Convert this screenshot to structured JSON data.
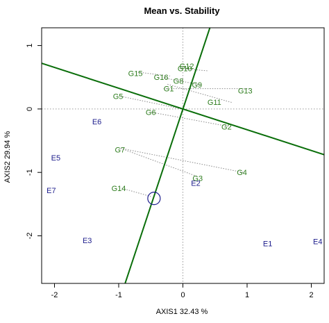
{
  "chart_data": {
    "type": "scatter",
    "title": "Mean vs. Stability",
    "xlabel": "AXIS1 32.43 %",
    "ylabel": "AXIS2 29.94 %",
    "xlim": [
      -2.2,
      2.2
    ],
    "ylim": [
      -2.75,
      1.28
    ],
    "xticks": [
      -2,
      -1,
      0,
      1,
      2
    ],
    "yticks": [
      -2,
      -1,
      0,
      1
    ],
    "grid": false,
    "genotype_color": "#2e7d1e",
    "environment_color": "#1c1c8c",
    "line_color": "#0a6e0a",
    "projection_color": "#888888",
    "reference_color": "#999999",
    "circle_color": "#1c1c8c",
    "genotypes": [
      {
        "label": "G1",
        "x": -0.22,
        "y": 0.32
      },
      {
        "label": "G2",
        "x": 0.68,
        "y": -0.28
      },
      {
        "label": "G3",
        "x": 0.23,
        "y": -1.09
      },
      {
        "label": "G4",
        "x": 0.92,
        "y": -1.0
      },
      {
        "label": "G5",
        "x": -1.01,
        "y": 0.2
      },
      {
        "label": "G6",
        "x": -0.5,
        "y": -0.05
      },
      {
        "label": "G7",
        "x": -0.98,
        "y": -0.64
      },
      {
        "label": "G9",
        "x": 0.22,
        "y": 0.38
      },
      {
        "label": "G10",
        "x": 0.03,
        "y": 0.64
      },
      {
        "label": "G11",
        "x": 0.49,
        "y": 0.11
      },
      {
        "label": "G12",
        "x": 0.06,
        "y": 0.68
      },
      {
        "label": "G13",
        "x": 0.97,
        "y": 0.29
      },
      {
        "label": "G14",
        "x": -1.0,
        "y": -1.25
      },
      {
        "label": "G15",
        "x": -0.74,
        "y": 0.56
      },
      {
        "label": "G16",
        "x": -0.34,
        "y": 0.5
      },
      {
        "label": "G8",
        "x": -0.07,
        "y": 0.44
      }
    ],
    "environments": [
      {
        "label": "E1",
        "x": 1.32,
        "y": -2.12
      },
      {
        "label": "E2",
        "x": 0.2,
        "y": -1.17
      },
      {
        "label": "E3",
        "x": -1.49,
        "y": -2.07
      },
      {
        "label": "E4",
        "x": 2.1,
        "y": -2.09
      },
      {
        "label": "E5",
        "x": -1.98,
        "y": -0.77
      },
      {
        "label": "E6",
        "x": -1.34,
        "y": -0.2
      },
      {
        "label": "E7",
        "x": -2.05,
        "y": -1.28
      }
    ],
    "average_environment": {
      "x": -0.45,
      "y": -1.41
    },
    "axis_line_points": [
      {
        "x": -2.2,
        "y": 0.72
      },
      {
        "x": 2.2,
        "y": -0.72
      }
    ],
    "perpendicular_points": [
      {
        "x": -0.9,
        "y": -2.75
      },
      {
        "x": 0.42,
        "y": 1.28
      }
    ],
    "projections": [
      {
        "from": {
          "x": -0.3,
          "y": 0.32
        },
        "to": {
          "x": 1.05,
          "y": 0.32
        }
      },
      {
        "from": {
          "x": -0.24,
          "y": 0.39
        },
        "to": {
          "x": 0.77,
          "y": 0.1
        }
      },
      {
        "from": {
          "x": -0.7,
          "y": 0.58
        },
        "to": {
          "x": -0.2,
          "y": 0.52
        }
      },
      {
        "from": {
          "x": -0.3,
          "y": 0.49
        },
        "to": {
          "x": 0.28,
          "y": 0.38
        }
      },
      {
        "from": {
          "x": -0.05,
          "y": 0.64
        },
        "to": {
          "x": 0.4,
          "y": 0.6
        }
      },
      {
        "from": {
          "x": -0.97,
          "y": 0.2
        },
        "to": {
          "x": -0.02,
          "y": 0.0
        }
      },
      {
        "from": {
          "x": -0.5,
          "y": -0.05
        },
        "to": {
          "x": 0.74,
          "y": -0.28
        }
      },
      {
        "from": {
          "x": -0.97,
          "y": -0.62
        },
        "to": {
          "x": 0.94,
          "y": -1.0
        }
      },
      {
        "from": {
          "x": -0.97,
          "y": -0.62
        },
        "to": {
          "x": 0.24,
          "y": -1.07
        }
      },
      {
        "from": {
          "x": -0.95,
          "y": -1.25
        },
        "to": {
          "x": -0.5,
          "y": -1.38
        }
      }
    ]
  }
}
